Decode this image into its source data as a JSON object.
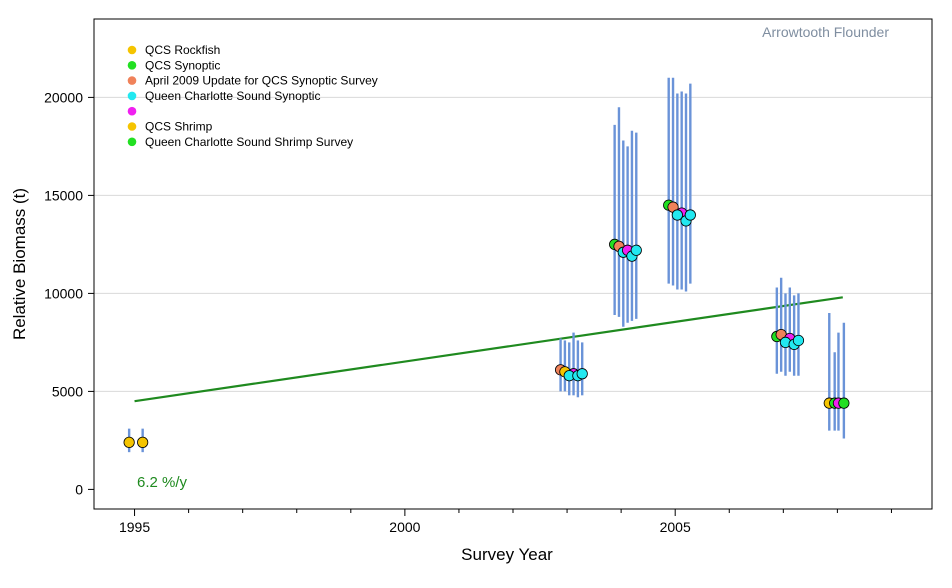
{
  "chart_data": {
    "type": "scatter",
    "title": "Arrowtooth Flounder",
    "xlabel": "Survey Year",
    "ylabel": "Relative Biomass (t)",
    "xlim": [
      1994.25,
      2009.75
    ],
    "ylim": [
      -1000,
      24000
    ],
    "x_ticks": [
      1995,
      2000,
      2005
    ],
    "x_minor_ticks": [
      1996,
      1997,
      1998,
      1999,
      2001,
      2002,
      2003,
      2004,
      2006,
      2007,
      2008,
      2009
    ],
    "y_ticks": [
      0,
      5000,
      10000,
      15000,
      20000
    ],
    "grid": "horizontal",
    "legend_position": "top-left",
    "trend_label": "6.2 %/y",
    "trend": {
      "name": "trend",
      "color": "#1f8a1f",
      "x": [
        1995,
        2008.1
      ],
      "y": [
        4500,
        9800
      ]
    },
    "error_bar_color": "#6a93d8",
    "series": [
      {
        "name": "QCS Rockfish",
        "color": "#f5c400",
        "points": [
          {
            "x": 1994.9,
            "y": 2400,
            "low": 1900,
            "high": 3100
          },
          {
            "x": 1995.15,
            "y": 2400,
            "low": 1900,
            "high": 3100
          }
        ]
      },
      {
        "name": "QCS Synoptic",
        "color": "#22e022",
        "points": [
          {
            "x": 2002.88,
            "y": 6100,
            "low": 5000,
            "high": 7700
          },
          {
            "x": 2003.88,
            "y": 12500,
            "low": 8900,
            "high": 18600
          },
          {
            "x": 2004.88,
            "y": 14500,
            "low": 10500,
            "high": 21000
          },
          {
            "x": 2006.88,
            "y": 7800,
            "low": 5900,
            "high": 10300
          },
          {
            "x": 2007.95,
            "y": 4400,
            "low": 3000,
            "high": 7000
          }
        ]
      },
      {
        "name": "April 2009 Update for QCS Synoptic Survey",
        "color": "#f0825a",
        "points": [
          {
            "x": 2002.96,
            "y": 6000,
            "low": 5000,
            "high": 7600
          },
          {
            "x": 2003.96,
            "y": 12400,
            "low": 8800,
            "high": 19500
          },
          {
            "x": 2004.96,
            "y": 14400,
            "low": 10400,
            "high": 21000
          },
          {
            "x": 2006.96,
            "y": 7900,
            "low": 6000,
            "high": 10800
          }
        ]
      },
      {
        "name": "Queen Charlotte Sound Synoptic",
        "color": "#22e8f0",
        "points": [
          {
            "x": 2003.04,
            "y": 5800,
            "low": 4800,
            "high": 7500
          },
          {
            "x": 2004.04,
            "y": 12100,
            "low": 8300,
            "high": 17800
          },
          {
            "x": 2005.04,
            "y": 14000,
            "low": 10200,
            "high": 20200
          },
          {
            "x": 2007.04,
            "y": 7500,
            "low": 5800,
            "high": 10000
          }
        ]
      },
      {
        "name": "",
        "color": "#f020f0",
        "points": [
          {
            "x": 2003.12,
            "y": 5900,
            "low": 4800,
            "high": 8000
          },
          {
            "x": 2004.12,
            "y": 12200,
            "low": 8500,
            "high": 17500
          },
          {
            "x": 2005.12,
            "y": 14100,
            "low": 10200,
            "high": 20300
          },
          {
            "x": 2007.12,
            "y": 7700,
            "low": 6000,
            "high": 10300
          },
          {
            "x": 2008.02,
            "y": 4400,
            "low": 3000,
            "high": 8000
          }
        ]
      },
      {
        "name": "QCS Shrimp",
        "color": "#f5c400",
        "points": [
          {
            "x": 2003.2,
            "y": 5800,
            "low": 4700,
            "high": 7600
          },
          {
            "x": 2004.2,
            "y": 11900,
            "low": 8600,
            "high": 18300
          },
          {
            "x": 2005.2,
            "y": 13700,
            "low": 10100,
            "high": 20200
          },
          {
            "x": 2007.2,
            "y": 7400,
            "low": 5800,
            "high": 9900
          },
          {
            "x": 2007.85,
            "y": 4400,
            "low": 3000,
            "high": 9000
          }
        ]
      },
      {
        "name": "Queen Charlotte Sound Shrimp Survey",
        "color": "#22e022",
        "points": [
          {
            "x": 2003.28,
            "y": 5900,
            "low": 4800,
            "high": 7500
          },
          {
            "x": 2004.28,
            "y": 12200,
            "low": 8700,
            "high": 18200
          },
          {
            "x": 2005.28,
            "y": 14000,
            "low": 10500,
            "high": 20700
          },
          {
            "x": 2007.28,
            "y": 7600,
            "low": 5800,
            "high": 10000
          },
          {
            "x": 2008.12,
            "y": 4400,
            "low": 2600,
            "high": 8500
          }
        ]
      }
    ],
    "point_layers": [
      {
        "series": 0,
        "point": 0
      },
      {
        "series": 0,
        "point": 1
      },
      {
        "series": 1,
        "point": 0,
        "color": "#f0825a"
      },
      {
        "series": 2,
        "point": 0,
        "color": "#f5c400"
      },
      {
        "series": 4,
        "point": 0
      },
      {
        "series": 3,
        "point": 0
      },
      {
        "series": 5,
        "point": 0,
        "color": "#22e8f0"
      },
      {
        "series": 6,
        "point": 0,
        "color": "#22e8f0"
      },
      {
        "series": 1,
        "point": 1,
        "color": "#22e022"
      },
      {
        "series": 2,
        "point": 1
      },
      {
        "series": 3,
        "point": 1
      },
      {
        "series": 4,
        "point": 1
      },
      {
        "series": 5,
        "point": 1,
        "color": "#22e8f0"
      },
      {
        "series": 6,
        "point": 1,
        "color": "#22e8f0"
      },
      {
        "series": 1,
        "point": 2
      },
      {
        "series": 2,
        "point": 2
      },
      {
        "series": 4,
        "point": 2
      },
      {
        "series": 3,
        "point": 2
      },
      {
        "series": 5,
        "point": 2,
        "color": "#22e8f0"
      },
      {
        "series": 6,
        "point": 2,
        "color": "#22e8f0"
      },
      {
        "series": 1,
        "point": 3
      },
      {
        "series": 2,
        "point": 3
      },
      {
        "series": 4,
        "point": 3
      },
      {
        "series": 3,
        "point": 3
      },
      {
        "series": 5,
        "point": 3,
        "color": "#22e8f0"
      },
      {
        "series": 6,
        "point": 3,
        "color": "#22e8f0"
      },
      {
        "series": 5,
        "point": 4
      },
      {
        "series": 1,
        "point": 4
      },
      {
        "series": 4,
        "point": 4
      },
      {
        "series": 6,
        "point": 4
      }
    ]
  }
}
